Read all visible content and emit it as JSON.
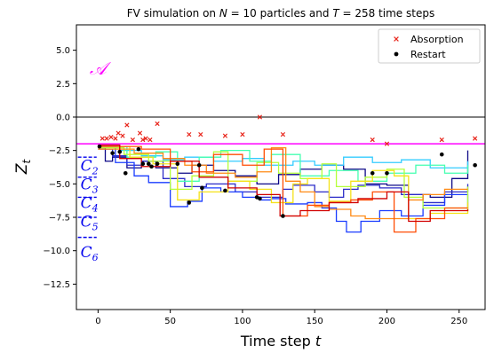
{
  "chart_data": {
    "type": "line",
    "title": "FV simulation on N = 10 particles and T = 258 time steps",
    "title_parts": {
      "prefix": "FV simulation on ",
      "n_symbol": "N",
      "n_value": " = 10 particles and ",
      "t_symbol": "T",
      "t_value": " = 258 time steps"
    },
    "xlabel": {
      "text": "Time step ",
      "symbol": "t"
    },
    "ylabel": {
      "symbol": "Z",
      "subscript": "t"
    },
    "xlim": [
      -15,
      268
    ],
    "ylim": [
      -14.4,
      6.9
    ],
    "xticks": [
      0,
      50,
      100,
      150,
      200,
      250
    ],
    "yticks": [
      5.0,
      2.5,
      0.0,
      -2.5,
      -5.0,
      -7.5,
      -10.0,
      -12.5
    ],
    "xtick_labels": [
      "0",
      "50",
      "100",
      "150",
      "200",
      "250"
    ],
    "ytick_labels": [
      "5.0",
      "2.5",
      "0.0",
      "−2.5",
      "−5.0",
      "−7.5",
      "−10.0",
      "−12.5"
    ],
    "zero_line": {
      "y": 0,
      "color": "#000000"
    },
    "threshold_line": {
      "y": -2.0,
      "color": "#ff00ff"
    },
    "region_labels": [
      {
        "text": "𝒜",
        "x": 0,
        "y": 3.2,
        "color": "#ff00ff"
      },
      {
        "text": "C",
        "sub": "2",
        "x": -6,
        "y": -4.0,
        "color": "#0000ee"
      },
      {
        "text": "C",
        "sub": "3",
        "x": -6,
        "y": -5.4,
        "color": "#0000ee"
      },
      {
        "text": "C",
        "sub": "4",
        "x": -6,
        "y": -6.8,
        "color": "#0000ee"
      },
      {
        "text": "C",
        "sub": "5",
        "x": -6,
        "y": -8.2,
        "color": "#0000ee"
      },
      {
        "text": "C",
        "sub": "6",
        "x": -6,
        "y": -10.5,
        "color": "#0000ee"
      }
    ],
    "level_marks": [
      -3.0,
      -4.5,
      -6.0,
      -7.5,
      -9.0
    ],
    "legend": {
      "placement": "top-right",
      "items": [
        {
          "label": "Absorption",
          "marker": "x",
          "color": "#e8251b"
        },
        {
          "label": "Restart",
          "marker": "dot",
          "color": "#000000"
        }
      ]
    },
    "series": [
      {
        "color": "#0d0887",
        "x": [
          0,
          5,
          10,
          20,
          30,
          40,
          55,
          65,
          80,
          95,
          110,
          125,
          140,
          155,
          170,
          185,
          200,
          215,
          230,
          245,
          256
        ],
        "y": [
          -2.3,
          -3.3,
          -3.0,
          -3.8,
          -3.3,
          -3.8,
          -4.2,
          -3.6,
          -4.0,
          -4.4,
          -5.0,
          -4.3,
          -3.9,
          -3.6,
          -3.9,
          -5.0,
          -5.1,
          -5.8,
          -6.0,
          -4.6,
          -2.5
        ]
      },
      {
        "color": "#2c2cc8",
        "x": [
          0,
          10,
          20,
          30,
          45,
          60,
          75,
          95,
          110,
          128,
          135,
          150,
          160,
          170,
          180,
          195,
          210,
          225,
          240,
          256
        ],
        "y": [
          -2.4,
          -2.9,
          -3.6,
          -3.3,
          -4.6,
          -5.2,
          -5.0,
          -5.6,
          -6.0,
          -5.4,
          -5.1,
          -5.6,
          -6.0,
          -5.4,
          -5.1,
          -5.3,
          -5.8,
          -6.4,
          -5.6,
          -5.0
        ]
      },
      {
        "color": "#1a3cff",
        "x": [
          0,
          12,
          25,
          35,
          50,
          62,
          72,
          85,
          100,
          112,
          120,
          130,
          145,
          155,
          165,
          172,
          182,
          195,
          210,
          225,
          240,
          256
        ],
        "y": [
          -2.2,
          -3.4,
          -4.4,
          -4.9,
          -6.7,
          -6.3,
          -5.3,
          -5.6,
          -6.0,
          -6.2,
          -6.1,
          -6.5,
          -6.4,
          -6.8,
          -7.8,
          -8.6,
          -7.8,
          -7.0,
          -7.4,
          -6.6,
          -5.8,
          -6.9
        ]
      },
      {
        "color": "#33ccff",
        "x": [
          0,
          15,
          30,
          45,
          60,
          80,
          100,
          115,
          135,
          150,
          170,
          190,
          210,
          230,
          256
        ],
        "y": [
          -2.1,
          -2.5,
          -2.9,
          -3.2,
          -3.0,
          -3.3,
          -3.1,
          -3.6,
          -3.3,
          -3.6,
          -3.0,
          -3.4,
          -3.2,
          -3.8,
          -3.3
        ]
      },
      {
        "color": "#44ffb0",
        "x": [
          0,
          20,
          40,
          55,
          70,
          85,
          105,
          120,
          140,
          160,
          180,
          200,
          220,
          240,
          256
        ],
        "y": [
          -2.2,
          -3.0,
          -2.6,
          -4.8,
          -3.0,
          -2.5,
          -3.3,
          -2.8,
          -4.4,
          -4.0,
          -4.8,
          -4.2,
          -3.6,
          -4.2,
          -3.6
        ]
      },
      {
        "color": "#b5ff3c",
        "x": [
          0,
          18,
          35,
          50,
          65,
          80,
          90,
          110,
          125,
          140,
          155,
          165,
          185,
          200,
          212,
          225,
          256
        ],
        "y": [
          -2.3,
          -2.8,
          -3.3,
          -5.4,
          -4.4,
          -2.6,
          -4.8,
          -3.4,
          -4.2,
          -4.6,
          -3.5,
          -5.2,
          -4.5,
          -3.9,
          -6.0,
          -6.8,
          -5.2
        ]
      },
      {
        "color": "#f5e219",
        "x": [
          0,
          22,
          38,
          55,
          70,
          90,
          105,
          120,
          135,
          145,
          160,
          175,
          190,
          205,
          215,
          230,
          256
        ],
        "y": [
          -2.2,
          -3.0,
          -3.5,
          -6.2,
          -5.6,
          -4.8,
          -5.4,
          -6.4,
          -5.0,
          -4.6,
          -6.3,
          -4.8,
          -4.0,
          -4.4,
          -7.6,
          -7.2,
          -6.4
        ]
      },
      {
        "color": "#ff8a14",
        "x": [
          0,
          25,
          45,
          60,
          75,
          95,
          110,
          120,
          130,
          140,
          150,
          160,
          175,
          185,
          200,
          215,
          225,
          240,
          256
        ],
        "y": [
          -2.4,
          -2.7,
          -3.1,
          -3.6,
          -4.2,
          -4.5,
          -4.1,
          -2.3,
          -4.8,
          -5.6,
          -6.7,
          -6.9,
          -7.4,
          -7.6,
          -7.6,
          -6.2,
          -5.8,
          -5.4,
          -5.4
        ]
      },
      {
        "color": "#ff4d05",
        "x": [
          0,
          30,
          50,
          65,
          80,
          100,
          115,
          128,
          145,
          160,
          175,
          190,
          205,
          220,
          240,
          256
        ],
        "y": [
          -2.2,
          -2.4,
          -3.3,
          -4.1,
          -2.8,
          -3.6,
          -2.4,
          -7.4,
          -6.6,
          -6.4,
          -6.2,
          -5.6,
          -8.6,
          -7.6,
          -6.8,
          -6.8
        ]
      },
      {
        "color": "#d10000",
        "x": [
          0,
          15,
          30,
          50,
          70,
          90,
          110,
          126,
          140,
          160,
          180,
          200,
          215,
          230,
          256
        ],
        "y": [
          -2.1,
          -3.1,
          -3.7,
          -3.3,
          -4.5,
          -5.3,
          -5.8,
          -7.4,
          -7.0,
          -6.4,
          -6.1,
          -5.6,
          -7.8,
          -7.0,
          -6.9
        ]
      }
    ],
    "absorption_points": {
      "x": [
        3,
        6,
        9,
        12,
        14,
        17,
        20,
        24,
        29,
        31,
        33,
        36,
        41,
        63,
        71,
        88,
        100,
        112,
        128,
        190,
        200,
        238,
        261
      ],
      "y": [
        -1.6,
        -1.6,
        -1.5,
        -1.6,
        -1.2,
        -1.4,
        -0.6,
        -1.7,
        -1.2,
        -1.7,
        -1.6,
        -1.7,
        -0.5,
        -1.3,
        -1.3,
        -1.4,
        -1.3,
        0.0,
        -1.3,
        -1.7,
        -2.0,
        -1.7,
        -1.6
      ]
    },
    "restart_points": {
      "x": [
        1,
        10,
        15,
        19,
        28,
        31,
        35,
        37,
        41,
        55,
        63,
        70,
        72,
        88,
        110,
        112,
        128,
        190,
        200,
        238,
        261
      ],
      "y": [
        -2.2,
        -2.7,
        -2.6,
        -4.2,
        -2.4,
        -3.5,
        -3.5,
        -3.7,
        -3.5,
        -3.5,
        -6.4,
        -3.6,
        -5.3,
        -5.5,
        -6.0,
        -6.1,
        -7.4,
        -4.2,
        -4.2,
        -2.8,
        -3.6
      ]
    }
  }
}
